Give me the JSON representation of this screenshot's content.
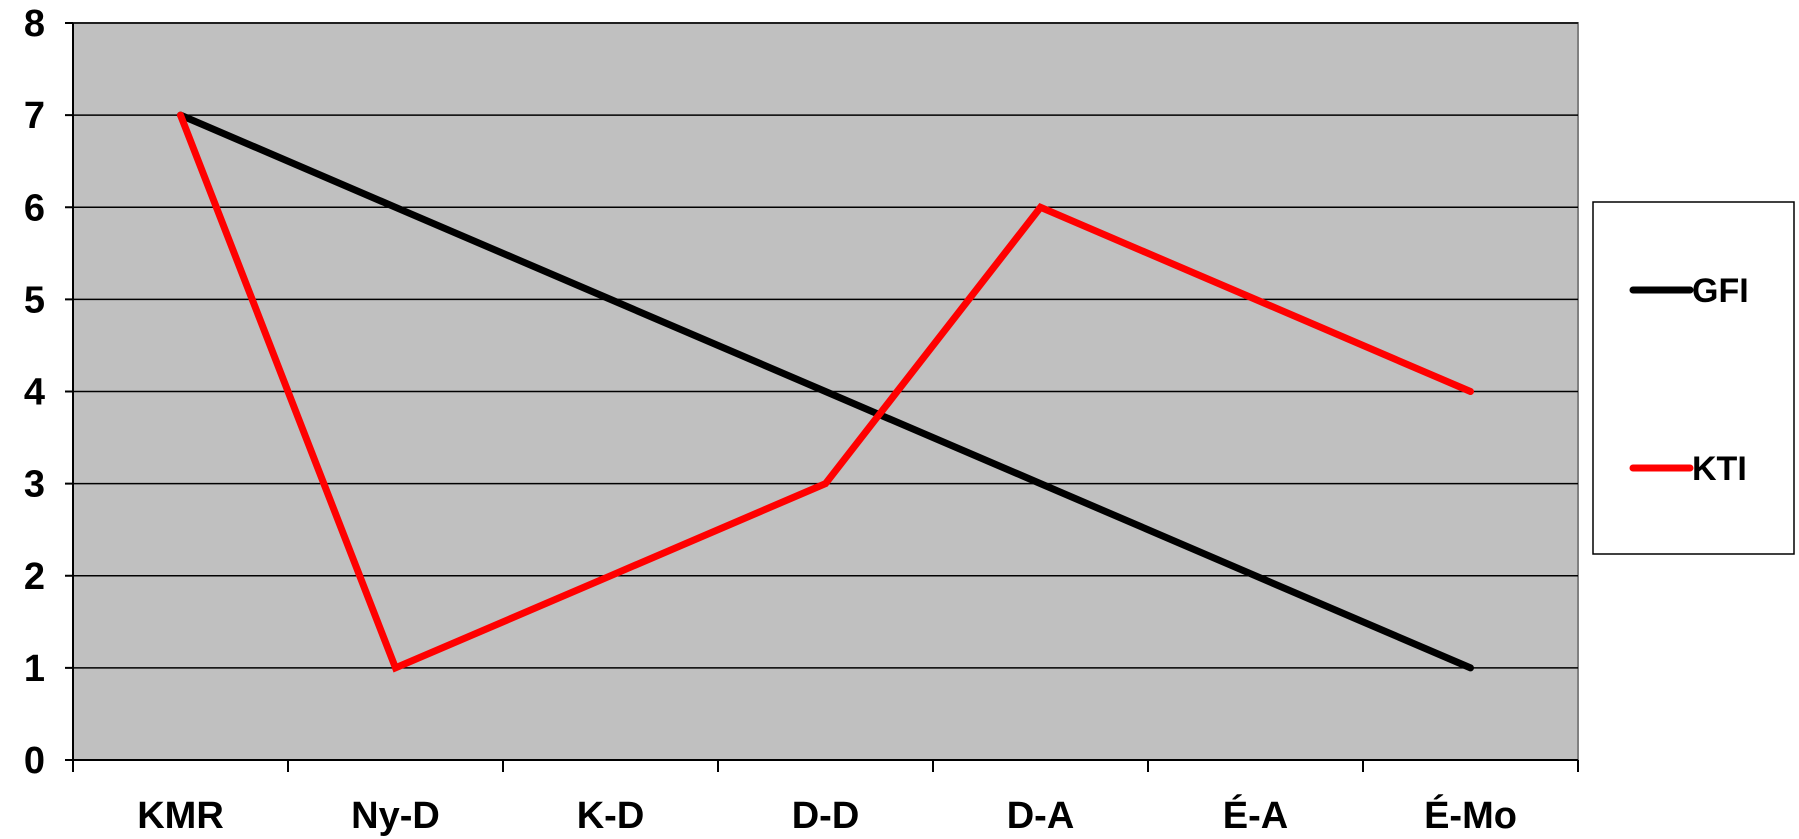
{
  "chart_data": {
    "type": "line",
    "title": "",
    "xlabel": "",
    "ylabel": "",
    "categories": [
      "KMR",
      "Ny-D",
      "K-D",
      "D-D",
      "D-A",
      "É-A",
      "É-Mo"
    ],
    "ylim": [
      0,
      8
    ],
    "yticks": [
      "0",
      "1",
      "2",
      "3",
      "4",
      "5",
      "6",
      "7",
      "8"
    ],
    "grid": true,
    "plot_background": "#c0c0c0",
    "legend_position": "right",
    "series": [
      {
        "name": "GFI",
        "color": "#000000",
        "values": [
          7,
          6,
          5,
          4,
          3,
          2,
          1
        ]
      },
      {
        "name": "KTI",
        "color": "#ff0000",
        "values": [
          7,
          1,
          2,
          3,
          6,
          5,
          4
        ]
      }
    ]
  }
}
